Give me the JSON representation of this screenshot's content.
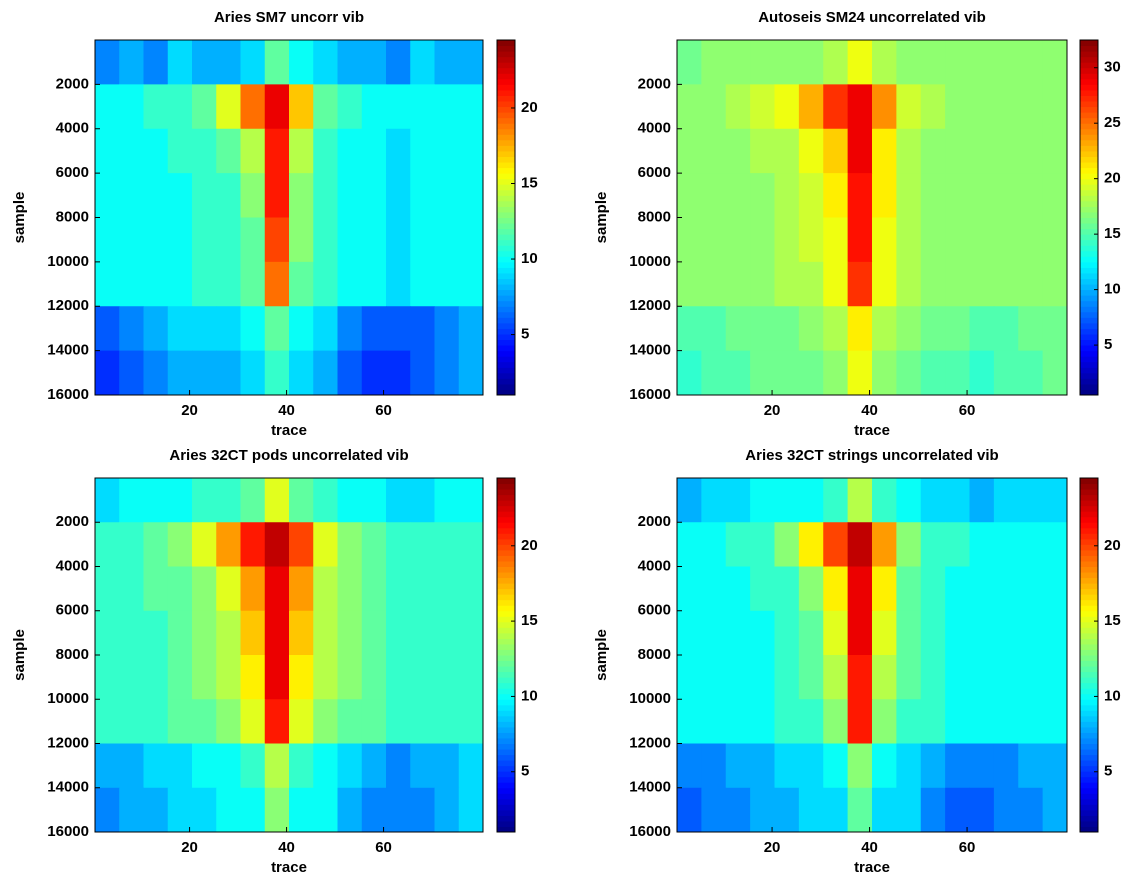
{
  "chart_data": [
    {
      "type": "heatmap",
      "title": "Aries SM7 uncorr vib",
      "x_label": "trace",
      "y_label": "sample",
      "colormap": "jet",
      "xlim": [
        0.5,
        80.5
      ],
      "xticks": [
        20,
        40,
        60
      ],
      "ylim": [
        0,
        16000
      ],
      "y_reversed": true,
      "yticks": [
        2000,
        4000,
        6000,
        8000,
        10000,
        12000,
        14000,
        16000
      ],
      "zlim": [
        1,
        24.5
      ],
      "zticks": [
        5,
        10,
        15,
        20
      ],
      "values": [
        [
          7,
          8,
          7,
          9,
          8,
          8,
          9,
          12,
          10,
          9,
          8,
          8,
          7,
          9,
          8,
          8
        ],
        [
          10,
          10,
          11,
          11,
          12,
          15,
          19,
          22,
          17,
          12,
          11,
          10,
          10,
          10,
          10,
          10
        ],
        [
          10,
          10,
          10,
          11,
          11,
          12,
          14,
          21,
          14,
          11,
          10,
          10,
          9,
          10,
          10,
          10
        ],
        [
          10,
          10,
          10,
          10,
          11,
          11,
          13,
          21,
          13,
          11,
          10,
          10,
          9,
          10,
          10,
          10
        ],
        [
          10,
          10,
          10,
          10,
          11,
          11,
          12,
          20,
          13,
          11,
          10,
          10,
          9,
          10,
          10,
          10
        ],
        [
          10,
          10,
          10,
          10,
          11,
          11,
          12,
          19,
          12,
          11,
          10,
          10,
          9,
          10,
          10,
          10
        ],
        [
          6,
          7,
          8,
          9,
          9,
          9,
          10,
          12,
          10,
          9,
          7,
          6,
          6,
          6,
          7,
          8
        ],
        [
          5,
          6,
          7,
          8,
          8,
          8,
          9,
          11,
          9,
          8,
          6,
          5,
          5,
          6,
          7,
          8
        ]
      ]
    },
    {
      "type": "heatmap",
      "title": "Autoseis SM24 uncorrelated vib",
      "x_label": "trace",
      "y_label": "sample",
      "colormap": "jet",
      "xlim": [
        0.5,
        80.5
      ],
      "xticks": [
        20,
        40,
        60
      ],
      "ylim": [
        0,
        16000
      ],
      "y_reversed": true,
      "yticks": [
        2000,
        4000,
        6000,
        8000,
        10000,
        12000,
        14000,
        16000
      ],
      "zlim": [
        0.5,
        32.5
      ],
      "zticks": [
        5,
        10,
        15,
        20,
        25,
        30
      ],
      "values": [
        [
          16,
          17,
          17,
          17,
          17,
          17,
          18,
          20,
          18,
          17,
          17,
          17,
          17,
          17,
          17,
          17
        ],
        [
          17,
          17,
          18,
          19,
          20,
          23,
          27,
          29,
          24,
          19,
          18,
          17,
          17,
          17,
          17,
          17
        ],
        [
          17,
          17,
          17,
          18,
          18,
          20,
          22,
          29,
          21,
          18,
          17,
          17,
          17,
          17,
          17,
          17
        ],
        [
          17,
          17,
          17,
          17,
          18,
          19,
          21,
          28,
          21,
          18,
          17,
          17,
          17,
          17,
          17,
          17
        ],
        [
          17,
          17,
          17,
          17,
          18,
          19,
          20,
          28,
          20,
          18,
          17,
          17,
          17,
          17,
          17,
          17
        ],
        [
          17,
          17,
          17,
          17,
          18,
          18,
          20,
          27,
          20,
          18,
          17,
          17,
          17,
          17,
          17,
          17
        ],
        [
          15,
          15,
          16,
          16,
          16,
          17,
          18,
          21,
          18,
          17,
          16,
          16,
          15,
          15,
          16,
          16
        ],
        [
          14,
          15,
          15,
          16,
          16,
          16,
          17,
          20,
          17,
          16,
          15,
          15,
          14,
          15,
          15,
          16
        ]
      ]
    },
    {
      "type": "heatmap",
      "title": "Aries 32CT pods uncorrelated vib",
      "x_label": "trace",
      "y_label": "sample",
      "colormap": "jet",
      "xlim": [
        0.5,
        80.5
      ],
      "xticks": [
        20,
        40,
        60
      ],
      "ylim": [
        0,
        16000
      ],
      "y_reversed": true,
      "yticks": [
        2000,
        4000,
        6000,
        8000,
        10000,
        12000,
        14000,
        16000
      ],
      "zlim": [
        1,
        24.5
      ],
      "zticks": [
        5,
        10,
        15,
        20
      ],
      "values": [
        [
          9,
          10,
          10,
          10,
          11,
          11,
          12,
          15,
          12,
          11,
          10,
          10,
          9,
          9,
          10,
          10
        ],
        [
          11,
          11,
          12,
          13,
          15,
          18,
          21,
          23,
          20,
          15,
          13,
          12,
          11,
          11,
          11,
          11
        ],
        [
          11,
          11,
          12,
          12,
          13,
          15,
          18,
          22,
          18,
          14,
          13,
          12,
          11,
          11,
          11,
          11
        ],
        [
          11,
          11,
          11,
          12,
          13,
          14,
          17,
          22,
          17,
          14,
          13,
          12,
          11,
          11,
          11,
          11
        ],
        [
          11,
          11,
          11,
          12,
          13,
          14,
          16,
          22,
          16,
          14,
          13,
          12,
          11,
          11,
          11,
          11
        ],
        [
          11,
          11,
          11,
          12,
          12,
          13,
          15,
          21,
          15,
          13,
          12,
          12,
          11,
          11,
          11,
          11
        ],
        [
          8,
          8,
          9,
          9,
          10,
          10,
          11,
          14,
          11,
          10,
          9,
          8,
          7,
          8,
          8,
          9
        ],
        [
          7,
          8,
          8,
          9,
          9,
          10,
          10,
          13,
          10,
          10,
          8,
          7,
          7,
          7,
          8,
          9
        ]
      ]
    },
    {
      "type": "heatmap",
      "title": "Aries 32CT strings uncorrelated vib",
      "x_label": "trace",
      "y_label": "sample",
      "colormap": "jet",
      "xlim": [
        0.5,
        80.5
      ],
      "xticks": [
        20,
        40,
        60
      ],
      "ylim": [
        0,
        16000
      ],
      "y_reversed": true,
      "yticks": [
        2000,
        4000,
        6000,
        8000,
        10000,
        12000,
        14000,
        16000
      ],
      "zlim": [
        1,
        24.5
      ],
      "zticks": [
        5,
        10,
        15,
        20
      ],
      "values": [
        [
          8,
          9,
          9,
          10,
          10,
          10,
          11,
          14,
          11,
          10,
          9,
          9,
          8,
          9,
          9,
          9
        ],
        [
          10,
          10,
          11,
          11,
          13,
          16,
          20,
          23,
          18,
          13,
          11,
          11,
          10,
          10,
          10,
          10
        ],
        [
          10,
          10,
          10,
          11,
          11,
          13,
          16,
          22,
          16,
          12,
          11,
          10,
          10,
          10,
          10,
          10
        ],
        [
          10,
          10,
          10,
          10,
          11,
          12,
          15,
          22,
          15,
          12,
          11,
          10,
          10,
          10,
          10,
          10
        ],
        [
          10,
          10,
          10,
          10,
          11,
          12,
          14,
          21,
          14,
          12,
          11,
          10,
          10,
          10,
          10,
          10
        ],
        [
          10,
          10,
          10,
          10,
          11,
          11,
          13,
          21,
          13,
          11,
          11,
          10,
          10,
          10,
          10,
          10
        ],
        [
          7,
          7,
          8,
          8,
          9,
          9,
          10,
          13,
          10,
          9,
          8,
          7,
          7,
          7,
          8,
          8
        ],
        [
          6,
          7,
          7,
          8,
          8,
          9,
          9,
          12,
          9,
          9,
          7,
          6,
          6,
          7,
          7,
          8
        ]
      ]
    }
  ]
}
